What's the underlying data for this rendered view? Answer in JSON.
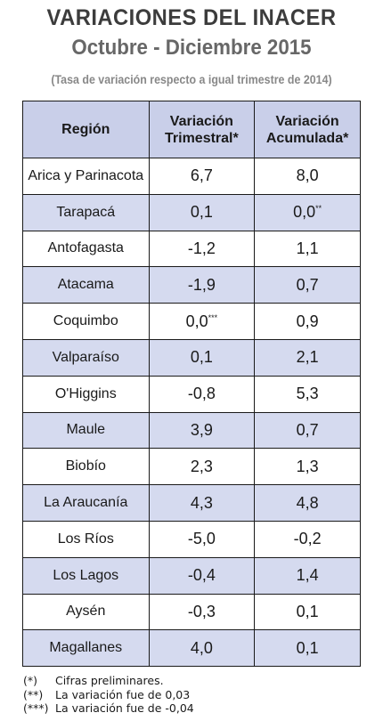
{
  "header": {
    "title": "VARIACIONES DEL INACER",
    "subtitle": "Octubre - Diciembre 2015",
    "note": "(Tasa de variación respecto a igual trimestre de 2014)"
  },
  "table": {
    "columns": {
      "region": "Región",
      "trimestral_1": "Variación",
      "trimestral_2": "Trimestral*",
      "acumulada_1": "Variación",
      "acumulada_2": "Acumulada*"
    },
    "rows": [
      {
        "region": "Arica y Parinacota",
        "trimestral": "6,7",
        "trimestral_mark": "",
        "acumulada": "8,0",
        "acumulada_mark": ""
      },
      {
        "region": "Tarapacá",
        "trimestral": "0,1",
        "trimestral_mark": "",
        "acumulada": "0,0",
        "acumulada_mark": "**"
      },
      {
        "region": "Antofagasta",
        "trimestral": "-1,2",
        "trimestral_mark": "",
        "acumulada": "1,1",
        "acumulada_mark": ""
      },
      {
        "region": "Atacama",
        "trimestral": "-1,9",
        "trimestral_mark": "",
        "acumulada": "0,7",
        "acumulada_mark": ""
      },
      {
        "region": "Coquimbo",
        "trimestral": "0,0",
        "trimestral_mark": "***",
        "acumulada": "0,9",
        "acumulada_mark": ""
      },
      {
        "region": "Valparaíso",
        "trimestral": "0,1",
        "trimestral_mark": "",
        "acumulada": "2,1",
        "acumulada_mark": ""
      },
      {
        "region": "O'Higgins",
        "trimestral": "-0,8",
        "trimestral_mark": "",
        "acumulada": "5,3",
        "acumulada_mark": ""
      },
      {
        "region": "Maule",
        "trimestral": "3,9",
        "trimestral_mark": "",
        "acumulada": "0,7",
        "acumulada_mark": ""
      },
      {
        "region": "Biobío",
        "trimestral": "2,3",
        "trimestral_mark": "",
        "acumulada": "1,3",
        "acumulada_mark": ""
      },
      {
        "region": "La Araucanía",
        "trimestral": "4,3",
        "trimestral_mark": "",
        "acumulada": "4,8",
        "acumulada_mark": ""
      },
      {
        "region": "Los Ríos",
        "trimestral": "-5,0",
        "trimestral_mark": "",
        "acumulada": "-0,2",
        "acumulada_mark": ""
      },
      {
        "region": "Los Lagos",
        "trimestral": "-0,4",
        "trimestral_mark": "",
        "acumulada": "1,4",
        "acumulada_mark": ""
      },
      {
        "region": "Aysén",
        "trimestral": "-0,3",
        "trimestral_mark": "",
        "acumulada": "0,1",
        "acumulada_mark": ""
      },
      {
        "region": "Magallanes",
        "trimestral": "4,0",
        "trimestral_mark": "",
        "acumulada": "0,1",
        "acumulada_mark": ""
      }
    ]
  },
  "footnotes": [
    {
      "mark": "(*)",
      "text": "Cifras preliminares."
    },
    {
      "mark": "(**)",
      "text": "La variación fue de 0,03"
    },
    {
      "mark": "(***)",
      "text": "La variación fue de -0,04"
    }
  ],
  "colors": {
    "header_fill": "#c9cfe9",
    "shaded_row_fill": "#d5daef",
    "title_color": "#3c3c3c",
    "subtitle_color": "#676767",
    "note_color": "#888888"
  }
}
